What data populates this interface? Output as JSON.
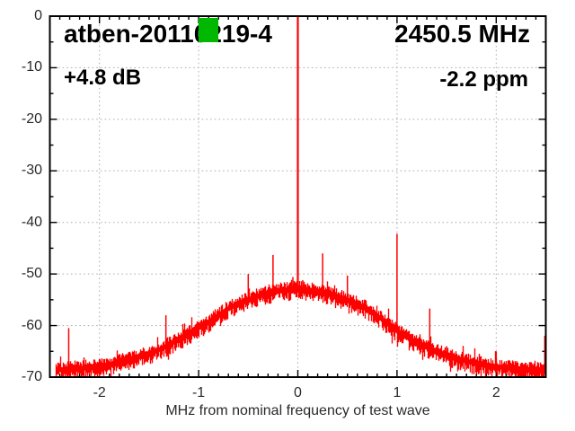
{
  "header": {
    "title": "atben-20110219-4",
    "frequency": "2450.5 MHz",
    "level": "+4.8 dB",
    "offset": "-2.2 ppm"
  },
  "marker": {
    "name": "green-square-marker",
    "color": "#00b800"
  },
  "chart_data": {
    "type": "line",
    "title": "atben-20110219-4",
    "xlabel": "MHz from nominal frequency of test wave",
    "ylabel": "",
    "xlim": [
      -2.5,
      2.5
    ],
    "ylim": [
      -70,
      0
    ],
    "x_ticks": [
      -2,
      -1,
      0,
      1,
      2
    ],
    "y_ticks": [
      0,
      -10,
      -20,
      -30,
      -40,
      -50,
      -60,
      -70
    ],
    "x_minor_step": 0.1,
    "y_minor_step": 5,
    "grid": "dotted",
    "legend": "none",
    "trace_color": "#ff0000",
    "grid_color": "#a8a8a8",
    "axis_color": "#000000",
    "annotations": {
      "center_frequency": "2450.5 MHz",
      "level": "+4.8 dB",
      "frequency_offset": "-2.2 ppm"
    },
    "carrier": {
      "x": 0.0,
      "top_db": 0.0
    },
    "noise_floor_profile": [
      [
        -2.5,
        -68.6
      ],
      [
        -2.4,
        -68.5
      ],
      [
        -2.2,
        -68.2
      ],
      [
        -2.0,
        -67.9
      ],
      [
        -1.8,
        -67.0
      ],
      [
        -1.6,
        -66.0
      ],
      [
        -1.4,
        -64.6
      ],
      [
        -1.2,
        -62.6
      ],
      [
        -1.0,
        -60.4
      ],
      [
        -0.9,
        -59.2
      ],
      [
        -0.8,
        -57.9
      ],
      [
        -0.7,
        -56.6
      ],
      [
        -0.6,
        -55.6
      ],
      [
        -0.5,
        -54.9
      ],
      [
        -0.4,
        -54.2
      ],
      [
        -0.3,
        -53.6
      ],
      [
        -0.2,
        -53.2
      ],
      [
        -0.1,
        -53.0
      ],
      [
        0.0,
        -52.7
      ],
      [
        0.1,
        -53.0
      ],
      [
        0.2,
        -53.2
      ],
      [
        0.3,
        -53.7
      ],
      [
        0.4,
        -54.3
      ],
      [
        0.5,
        -55.0
      ],
      [
        0.6,
        -55.8
      ],
      [
        0.7,
        -56.7
      ],
      [
        0.8,
        -58.0
      ],
      [
        0.9,
        -59.4
      ],
      [
        1.0,
        -60.9
      ],
      [
        1.2,
        -63.2
      ],
      [
        1.4,
        -65.0
      ],
      [
        1.6,
        -66.3
      ],
      [
        1.8,
        -67.3
      ],
      [
        2.0,
        -67.9
      ],
      [
        2.2,
        -68.3
      ],
      [
        2.5,
        -68.6
      ]
    ],
    "spikes": [
      {
        "x": 0.0,
        "top_db": 0.0
      },
      {
        "x": -0.25,
        "top_db": -46.3
      },
      {
        "x": 0.25,
        "top_db": -46.0
      },
      {
        "x": -0.5,
        "top_db": -50.0
      },
      {
        "x": 0.5,
        "top_db": -50.3
      },
      {
        "x": -0.67,
        "top_db": -55.5
      },
      {
        "x": 0.68,
        "top_db": -55.0
      },
      {
        "x": -0.75,
        "top_db": -58.5
      },
      {
        "x": 1.0,
        "top_db": -42.2
      },
      {
        "x": -1.33,
        "top_db": -58.0
      },
      {
        "x": 1.33,
        "top_db": -56.7
      },
      {
        "x": -1.18,
        "top_db": -62.0
      },
      {
        "x": 1.25,
        "top_db": -63.4
      },
      {
        "x": 1.5,
        "top_db": -64.0
      },
      {
        "x": -2.0,
        "top_db": -66.5
      },
      {
        "x": 2.0,
        "top_db": -65.0
      },
      {
        "x": -2.31,
        "top_db": -60.5
      },
      {
        "x": 2.49,
        "top_db": -62.0
      },
      {
        "x": -0.05,
        "top_db": -50.6
      },
      {
        "x": 0.05,
        "top_db": -51.2
      },
      {
        "x": 0.1,
        "top_db": -51.8
      }
    ]
  }
}
